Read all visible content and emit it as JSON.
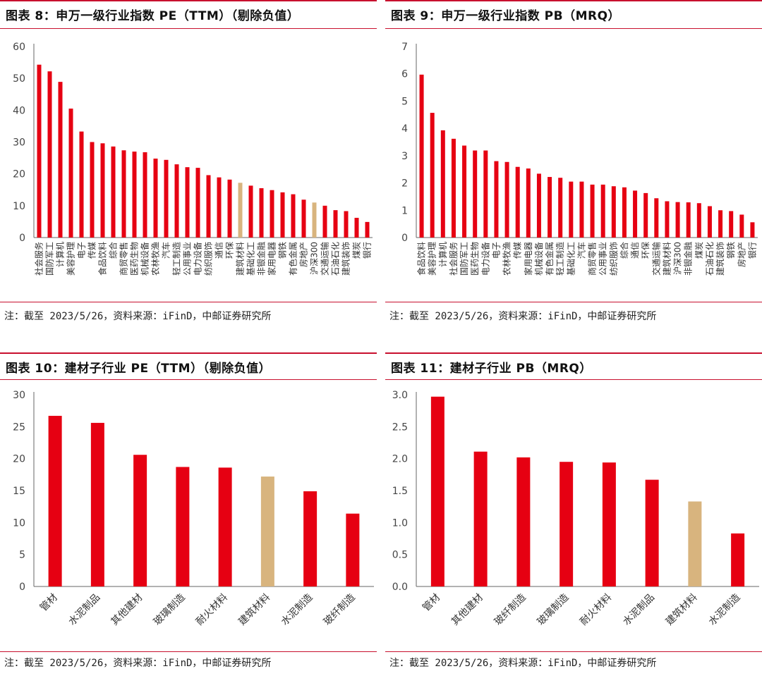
{
  "colors": {
    "bar": "#e60012",
    "highlight": "#d8b47e",
    "rule": "#c8102e",
    "axis": "#666666"
  },
  "note": "注：截至 2023/5/26，资料来源：iFinD，中邮证券研究所",
  "chart_data": [
    {
      "id": "fig8",
      "title": "图表 8：申万一级行业指数 PE（TTM）（剔除负值）",
      "type": "bar",
      "ylim": [
        0,
        60
      ],
      "yticks": [
        "0",
        "10",
        "20",
        "30",
        "40",
        "50",
        "60"
      ],
      "categories": [
        "社会服务",
        "国防军工",
        "计算机",
        "美容护理",
        "电子",
        "传媒",
        "食品饮料",
        "综合",
        "商贸零售",
        "医药生物",
        "机械设备",
        "农林牧渔",
        "汽车",
        "轻工制造",
        "公用事业",
        "电力设备",
        "纺织服饰",
        "通信",
        "环保",
        "建筑材料",
        "基础化工",
        "非银金融",
        "家用电器",
        "钢铁",
        "有色金属",
        "房地产",
        "沪深300",
        "交通运输",
        "石油石化",
        "建筑装饰",
        "煤炭",
        "银行"
      ],
      "values": [
        54.3,
        52.2,
        48.9,
        40.5,
        33.3,
        30.0,
        29.6,
        28.6,
        27.4,
        27.0,
        26.8,
        24.8,
        24.4,
        23.0,
        22.1,
        21.9,
        19.6,
        18.9,
        18.2,
        17.2,
        16.3,
        15.5,
        14.9,
        14.2,
        13.6,
        11.9,
        11.0,
        10.0,
        8.6,
        8.3,
        6.2,
        4.9
      ],
      "highlight": [
        "建筑材料",
        "沪深300"
      ]
    },
    {
      "id": "fig9",
      "title": "图表 9：申万一级行业指数 PB（MRQ）",
      "type": "bar",
      "ylim": [
        0,
        7
      ],
      "yticks": [
        "0",
        "1",
        "2",
        "3",
        "4",
        "5",
        "6",
        "7"
      ],
      "categories": [
        "食品饮料",
        "美容护理",
        "计算机",
        "社会服务",
        "国防军工",
        "医药生物",
        "电力设备",
        "电子",
        "农林牧渔",
        "传媒",
        "家用电器",
        "机械设备",
        "有色金属",
        "轻工制造",
        "基础化工",
        "汽车",
        "商贸零售",
        "公用事业",
        "纺织服饰",
        "综合",
        "通信",
        "环保",
        "交通运输",
        "建筑材料",
        "沪深300",
        "非银金融",
        "煤炭",
        "石油石化",
        "建筑装饰",
        "钢铁",
        "房地产",
        "银行"
      ],
      "values": [
        5.97,
        4.57,
        3.93,
        3.62,
        3.37,
        3.19,
        3.19,
        2.8,
        2.77,
        2.59,
        2.53,
        2.34,
        2.22,
        2.19,
        2.05,
        2.05,
        1.94,
        1.94,
        1.88,
        1.84,
        1.72,
        1.63,
        1.44,
        1.33,
        1.3,
        1.29,
        1.26,
        1.15,
        1.0,
        0.97,
        0.84,
        0.56
      ],
      "highlight": []
    },
    {
      "id": "fig10",
      "title": "图表 10：建材子行业 PE（TTM）（剔除负值）",
      "type": "bar",
      "ylim": [
        0,
        30
      ],
      "yticks": [
        "0",
        "5",
        "10",
        "15",
        "20",
        "25",
        "30"
      ],
      "categories": [
        "管材",
        "水泥制品",
        "其他建材",
        "玻璃制造",
        "耐火材料",
        "建筑材料",
        "水泥制造",
        "玻纤制造"
      ],
      "values": [
        26.7,
        25.6,
        20.6,
        18.7,
        18.6,
        17.2,
        14.9,
        11.4
      ],
      "highlight": [
        "建筑材料"
      ]
    },
    {
      "id": "fig11",
      "title": "图表 11：建材子行业 PB（MRQ）",
      "type": "bar",
      "ylim": [
        0,
        3.0
      ],
      "yticks": [
        "0.0",
        "0.5",
        "1.0",
        "1.5",
        "2.0",
        "2.5",
        "3.0"
      ],
      "categories": [
        "管材",
        "其他建材",
        "玻纤制造",
        "玻璃制造",
        "耐火材料",
        "水泥制品",
        "建筑材料",
        "水泥制造"
      ],
      "values": [
        2.97,
        2.11,
        2.02,
        1.95,
        1.94,
        1.67,
        1.33,
        0.83
      ],
      "highlight": [
        "建筑材料"
      ]
    }
  ]
}
